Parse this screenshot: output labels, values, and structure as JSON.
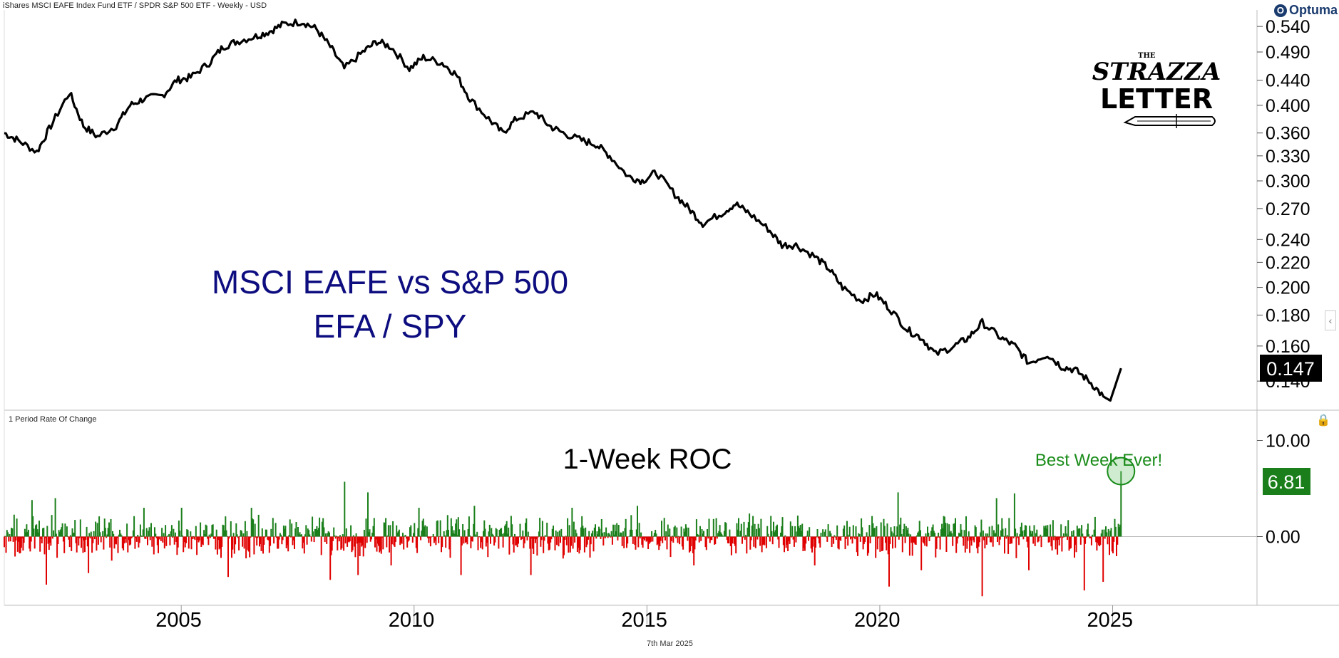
{
  "header_title": "iShares MSCI EAFE Index Fund ETF / SPDR S&P 500 ETF - Weekly - USD",
  "brand": {
    "name": "Optuma",
    "logo_icon": "optuma-icon"
  },
  "watermark": {
    "line1": "THE",
    "line2": "STRAZZA",
    "line3": "LETTER"
  },
  "footer_date": "7th Mar 2025",
  "colors": {
    "up": "#1a7f1a",
    "down": "#e00000",
    "title": "#0d0d80",
    "price_line": "#000000",
    "best_week": "#1a8c1a",
    "grid": "#cccccc"
  },
  "chart_data": [
    {
      "type": "line",
      "title": "MSCI EAFE vs S&P 500",
      "subtitle": "EFA / SPY",
      "y_scale": "log",
      "ylim": [
        0.126,
        0.575
      ],
      "xlim": [
        2001.2,
        2028.1
      ],
      "y_ticks": [
        0.54,
        0.49,
        0.44,
        0.4,
        0.36,
        0.33,
        0.3,
        0.27,
        0.24,
        0.22,
        0.2,
        0.18,
        0.16,
        0.14
      ],
      "y_tick_labels": [
        "0.540",
        "0.490",
        "0.440",
        "0.400",
        "0.360",
        "0.330",
        "0.300",
        "0.270",
        "0.240",
        "0.220",
        "0.200",
        "0.180",
        "0.160",
        "0.140"
      ],
      "last_value_label": "0.147",
      "series": [
        {
          "x": [
            2001.2,
            2001.5,
            2001.9,
            2002.2,
            2002.6,
            2002.9,
            2003.2,
            2003.6,
            2003.9,
            2004.2,
            2004.6,
            2004.9,
            2005.2,
            2005.6,
            2005.9,
            2006.2,
            2006.6,
            2006.9,
            2007.2,
            2007.6,
            2007.9,
            2008.2,
            2008.5,
            2008.9,
            2009.2,
            2009.5,
            2009.9,
            2010.2,
            2010.6,
            2010.9,
            2011.2,
            2011.6,
            2011.9,
            2012.2,
            2012.6,
            2012.9,
            2013.2,
            2013.6,
            2013.9,
            2014.2,
            2014.6,
            2014.9,
            2015.2,
            2015.6,
            2015.9,
            2016.2,
            2016.6,
            2016.9,
            2017.2,
            2017.6,
            2017.9,
            2018.2,
            2018.6,
            2018.9,
            2019.2,
            2019.6,
            2019.9,
            2020.2,
            2020.6,
            2020.9,
            2021.2,
            2021.6,
            2021.9,
            2022.2,
            2022.6,
            2022.9,
            2023.2,
            2023.6,
            2023.9,
            2024.2,
            2024.5,
            2024.8,
            2024.95,
            2025.18
          ],
          "values": [
            0.36,
            0.35,
            0.335,
            0.37,
            0.42,
            0.37,
            0.355,
            0.37,
            0.4,
            0.41,
            0.415,
            0.44,
            0.445,
            0.47,
            0.5,
            0.51,
            0.52,
            0.53,
            0.545,
            0.55,
            0.535,
            0.5,
            0.46,
            0.49,
            0.51,
            0.5,
            0.46,
            0.48,
            0.47,
            0.45,
            0.41,
            0.38,
            0.36,
            0.38,
            0.39,
            0.37,
            0.36,
            0.35,
            0.345,
            0.33,
            0.305,
            0.3,
            0.31,
            0.285,
            0.27,
            0.255,
            0.265,
            0.275,
            0.265,
            0.25,
            0.235,
            0.235,
            0.225,
            0.215,
            0.2,
            0.19,
            0.195,
            0.185,
            0.17,
            0.165,
            0.155,
            0.16,
            0.165,
            0.175,
            0.165,
            0.16,
            0.15,
            0.155,
            0.148,
            0.146,
            0.14,
            0.132,
            0.13,
            0.147
          ]
        }
      ]
    },
    {
      "type": "bar",
      "title": "1-Week ROC",
      "panel_label": "1 Period Rate Of Change",
      "ylim": [
        -7.0,
        13.0
      ],
      "y_ticks": [
        10.0,
        0.0
      ],
      "y_tick_labels": [
        "10.00",
        "0.00"
      ],
      "annotation": "Best Week Ever!",
      "last_value_label": "6.81",
      "last_value": 6.81,
      "x_tick_labels": [
        "2005",
        "2010",
        "2015",
        "2020",
        "2025"
      ],
      "x_ticks": [
        2005,
        2010,
        2015,
        2020,
        2025
      ],
      "spikes": [
        {
          "x": 2001.8,
          "value": 3.8
        },
        {
          "x": 2002.1,
          "value": -5.0
        },
        {
          "x": 2002.3,
          "value": 4.0
        },
        {
          "x": 2003.0,
          "value": -3.8
        },
        {
          "x": 2003.5,
          "value": -2.5
        },
        {
          "x": 2004.2,
          "value": 3.0
        },
        {
          "x": 2005.0,
          "value": 3.0
        },
        {
          "x": 2006.0,
          "value": -4.2
        },
        {
          "x": 2006.5,
          "value": 3.0
        },
        {
          "x": 2008.2,
          "value": -4.5
        },
        {
          "x": 2008.5,
          "value": 5.7
        },
        {
          "x": 2008.8,
          "value": -4.0
        },
        {
          "x": 2009.0,
          "value": 4.6
        },
        {
          "x": 2009.5,
          "value": -3.0
        },
        {
          "x": 2010.1,
          "value": 3.0
        },
        {
          "x": 2011.0,
          "value": -4.0
        },
        {
          "x": 2011.3,
          "value": 3.2
        },
        {
          "x": 2012.5,
          "value": -4.0
        },
        {
          "x": 2013.4,
          "value": 3.0
        },
        {
          "x": 2014.8,
          "value": 3.2
        },
        {
          "x": 2016.0,
          "value": -3.0
        },
        {
          "x": 2017.2,
          "value": 2.4
        },
        {
          "x": 2018.6,
          "value": -3.0
        },
        {
          "x": 2020.2,
          "value": -5.2
        },
        {
          "x": 2020.4,
          "value": 4.6
        },
        {
          "x": 2020.9,
          "value": -3.5
        },
        {
          "x": 2022.2,
          "value": -6.2
        },
        {
          "x": 2022.5,
          "value": 4.0
        },
        {
          "x": 2022.9,
          "value": 4.5
        },
        {
          "x": 2023.2,
          "value": -3.5
        },
        {
          "x": 2024.4,
          "value": -5.6
        },
        {
          "x": 2024.8,
          "value": -4.7
        },
        {
          "x": 2025.18,
          "value": 6.81
        }
      ]
    }
  ]
}
